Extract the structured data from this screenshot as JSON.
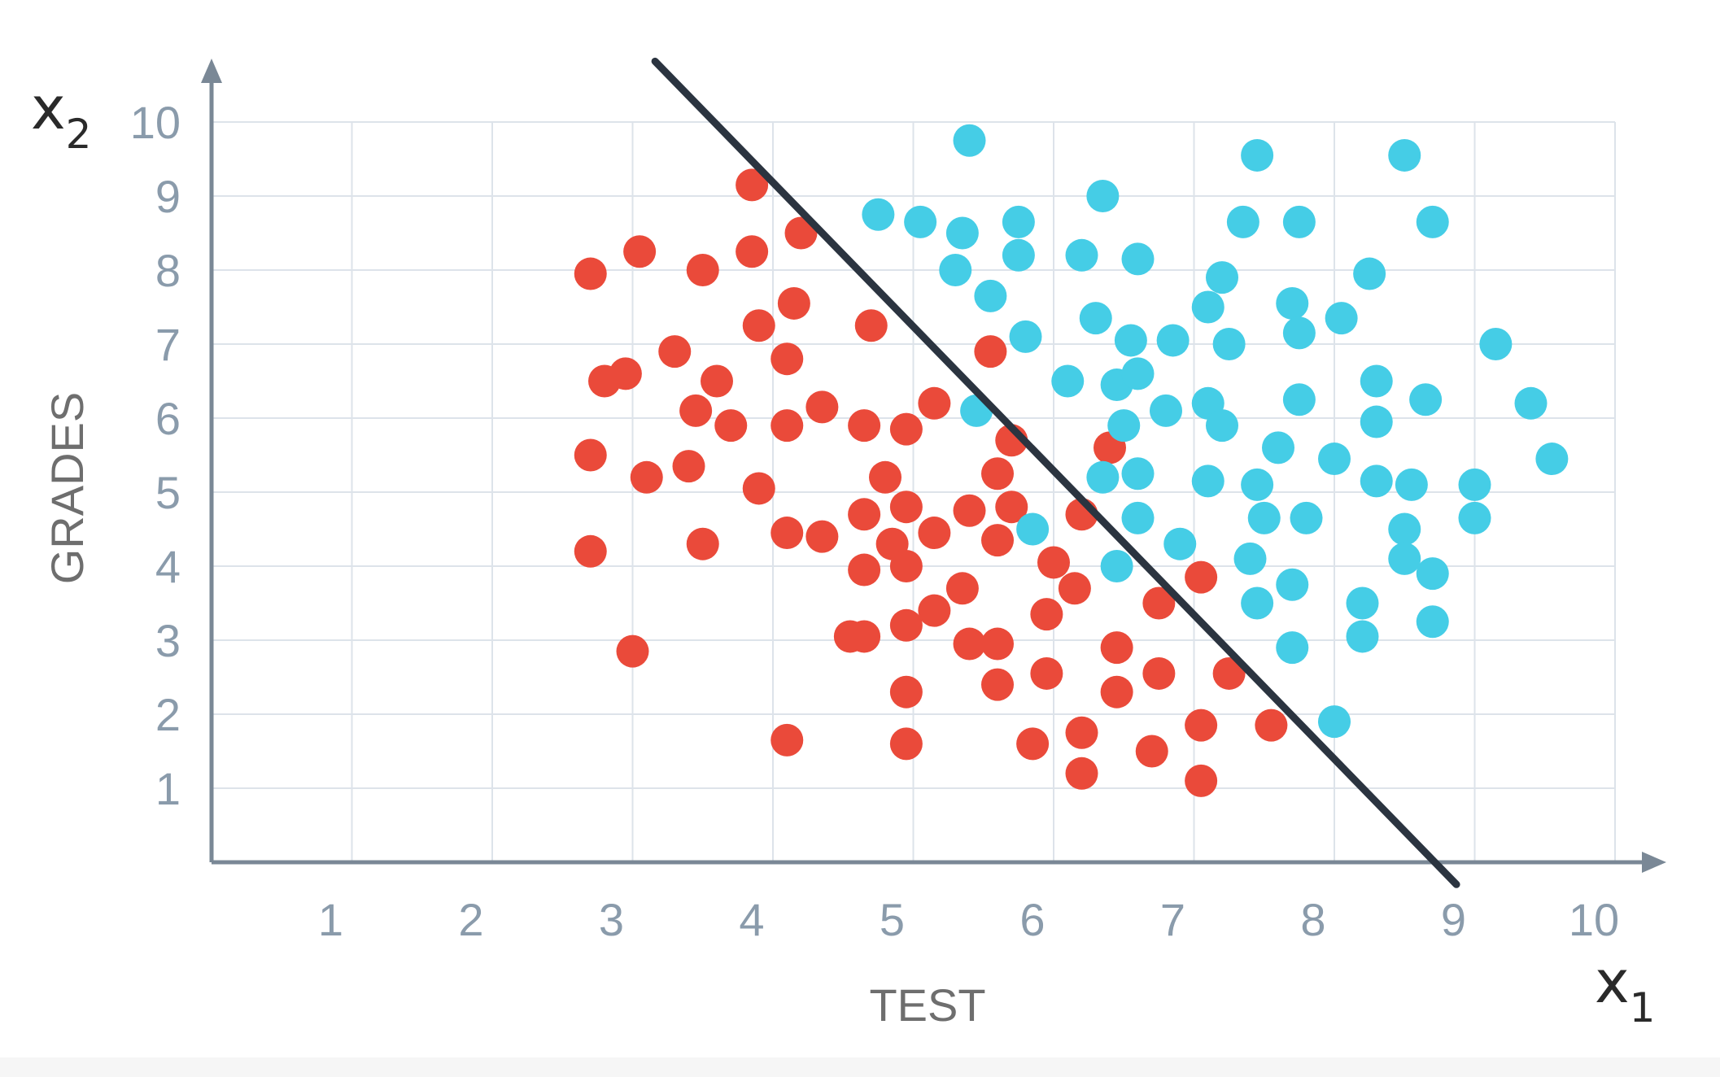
{
  "chart_data": {
    "type": "scatter",
    "xlabel": "TEST",
    "ylabel": "GRADES",
    "x_symbol": "x",
    "x_symbol_sub": "1",
    "y_symbol": "x",
    "y_symbol_sub": "2",
    "xlim": [
      0,
      10
    ],
    "ylim": [
      0,
      10
    ],
    "x_ticks": [
      1,
      2,
      3,
      4,
      5,
      6,
      7,
      8,
      9,
      10
    ],
    "y_ticks": [
      1,
      2,
      3,
      4,
      5,
      6,
      7,
      8,
      9,
      10
    ],
    "grid": true,
    "boundary_line": {
      "color": "#2b3440",
      "points": [
        [
          3.16,
          10.82
        ],
        [
          8.87,
          -0.3
        ]
      ]
    },
    "series": [
      {
        "color": "#ea4a3a",
        "points": [
          [
            2.7,
            7.95
          ],
          [
            3.05,
            8.25
          ],
          [
            3.5,
            8.0
          ],
          [
            3.85,
            8.25
          ],
          [
            3.85,
            9.15
          ],
          [
            4.2,
            8.5
          ],
          [
            4.15,
            7.55
          ],
          [
            3.9,
            7.25
          ],
          [
            3.3,
            6.9
          ],
          [
            2.95,
            6.6
          ],
          [
            2.8,
            6.5
          ],
          [
            3.6,
            6.5
          ],
          [
            4.1,
            6.8
          ],
          [
            4.7,
            7.25
          ],
          [
            5.55,
            6.9
          ],
          [
            3.45,
            6.1
          ],
          [
            3.7,
            5.9
          ],
          [
            4.1,
            5.9
          ],
          [
            4.35,
            6.15
          ],
          [
            2.7,
            5.5
          ],
          [
            3.1,
            5.2
          ],
          [
            3.4,
            5.35
          ],
          [
            3.9,
            5.05
          ],
          [
            4.65,
            5.9
          ],
          [
            4.95,
            5.85
          ],
          [
            5.15,
            6.2
          ],
          [
            5.7,
            5.7
          ],
          [
            6.4,
            5.6
          ],
          [
            4.8,
            5.2
          ],
          [
            5.6,
            5.25
          ],
          [
            4.65,
            4.7
          ],
          [
            4.95,
            4.8
          ],
          [
            5.4,
            4.75
          ],
          [
            5.7,
            4.8
          ],
          [
            6.2,
            4.7
          ],
          [
            2.7,
            4.2
          ],
          [
            3.5,
            4.3
          ],
          [
            4.1,
            4.45
          ],
          [
            4.35,
            4.4
          ],
          [
            4.85,
            4.3
          ],
          [
            5.15,
            4.45
          ],
          [
            5.6,
            4.35
          ],
          [
            4.65,
            3.95
          ],
          [
            4.95,
            4.0
          ],
          [
            6.0,
            4.05
          ],
          [
            5.35,
            3.7
          ],
          [
            6.15,
            3.7
          ],
          [
            6.75,
            3.5
          ],
          [
            7.05,
            3.85
          ],
          [
            3.0,
            2.85
          ],
          [
            4.55,
            3.05
          ],
          [
            4.65,
            3.05
          ],
          [
            4.95,
            3.2
          ],
          [
            5.15,
            3.4
          ],
          [
            5.95,
            3.35
          ],
          [
            5.4,
            2.95
          ],
          [
            5.6,
            2.95
          ],
          [
            6.45,
            2.9
          ],
          [
            5.95,
            2.55
          ],
          [
            6.75,
            2.55
          ],
          [
            7.25,
            2.55
          ],
          [
            4.95,
            2.3
          ],
          [
            5.6,
            2.4
          ],
          [
            6.45,
            2.3
          ],
          [
            7.05,
            1.85
          ],
          [
            7.55,
            1.85
          ],
          [
            6.2,
            1.75
          ],
          [
            4.1,
            1.65
          ],
          [
            4.95,
            1.6
          ],
          [
            5.85,
            1.6
          ],
          [
            6.7,
            1.5
          ],
          [
            6.2,
            1.2
          ],
          [
            7.05,
            1.1
          ]
        ]
      },
      {
        "color": "#45cde6",
        "points": [
          [
            5.4,
            9.75
          ],
          [
            7.45,
            9.55
          ],
          [
            8.5,
            9.55
          ],
          [
            6.35,
            9.0
          ],
          [
            4.75,
            8.75
          ],
          [
            5.05,
            8.65
          ],
          [
            5.35,
            8.5
          ],
          [
            5.75,
            8.65
          ],
          [
            7.35,
            8.65
          ],
          [
            7.75,
            8.65
          ],
          [
            8.7,
            8.65
          ],
          [
            5.75,
            8.2
          ],
          [
            6.2,
            8.2
          ],
          [
            6.6,
            8.15
          ],
          [
            5.3,
            8.0
          ],
          [
            8.25,
            7.95
          ],
          [
            7.2,
            7.9
          ],
          [
            5.55,
            7.65
          ],
          [
            7.7,
            7.55
          ],
          [
            7.1,
            7.5
          ],
          [
            6.3,
            7.35
          ],
          [
            8.05,
            7.35
          ],
          [
            5.8,
            7.1
          ],
          [
            6.55,
            7.05
          ],
          [
            6.85,
            7.05
          ],
          [
            7.25,
            7.0
          ],
          [
            7.75,
            7.15
          ],
          [
            9.15,
            7.0
          ],
          [
            6.1,
            6.5
          ],
          [
            6.45,
            6.45
          ],
          [
            6.6,
            6.6
          ],
          [
            8.3,
            6.5
          ],
          [
            5.45,
            6.1
          ],
          [
            6.5,
            5.9
          ],
          [
            6.8,
            6.1
          ],
          [
            7.1,
            6.2
          ],
          [
            7.2,
            5.9
          ],
          [
            7.75,
            6.25
          ],
          [
            8.3,
            5.95
          ],
          [
            8.65,
            6.25
          ],
          [
            9.4,
            6.2
          ],
          [
            7.6,
            5.6
          ],
          [
            6.35,
            5.2
          ],
          [
            6.6,
            5.25
          ],
          [
            7.1,
            5.15
          ],
          [
            7.45,
            5.1
          ],
          [
            8.0,
            5.45
          ],
          [
            8.3,
            5.15
          ],
          [
            8.55,
            5.1
          ],
          [
            9.0,
            5.1
          ],
          [
            9.55,
            5.45
          ],
          [
            6.6,
            4.65
          ],
          [
            7.5,
            4.65
          ],
          [
            7.8,
            4.65
          ],
          [
            9.0,
            4.65
          ],
          [
            5.85,
            4.5
          ],
          [
            6.9,
            4.3
          ],
          [
            8.5,
            4.5
          ],
          [
            7.4,
            4.1
          ],
          [
            8.5,
            4.1
          ],
          [
            8.7,
            3.9
          ],
          [
            6.45,
            4.0
          ],
          [
            7.45,
            3.5
          ],
          [
            7.7,
            3.75
          ],
          [
            8.2,
            3.5
          ],
          [
            8.2,
            3.05
          ],
          [
            8.7,
            3.25
          ],
          [
            7.7,
            2.9
          ],
          [
            8.0,
            1.9
          ]
        ]
      }
    ]
  }
}
